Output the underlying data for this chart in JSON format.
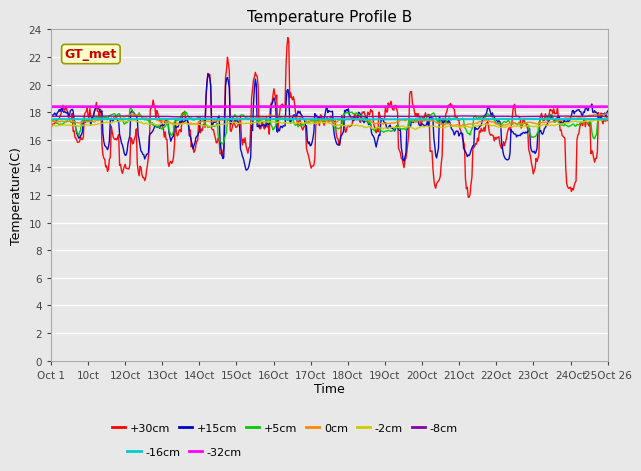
{
  "title": "Temperature Profile B",
  "xlabel": "Time",
  "ylabel": "Temperature(C)",
  "annotation": "GT_met",
  "ylim": [
    0,
    24
  ],
  "yticks": [
    0,
    2,
    4,
    6,
    8,
    10,
    12,
    14,
    16,
    18,
    20,
    22,
    24
  ],
  "xtick_labels": [
    "Oct 1",
    "10ct",
    "12Oct",
    "13Oct",
    "14Oct",
    "15Oct",
    "16Oct",
    "17Oct",
    "18Oct",
    "19Oct",
    "20Oct",
    "21Oct",
    "22Oct",
    "23Oct",
    "24Oct",
    "25Oct 26"
  ],
  "series": [
    {
      "label": "+30cm",
      "color": "#ff0000",
      "lw": 1.0
    },
    {
      "label": "+15cm",
      "color": "#0000cc",
      "lw": 1.0
    },
    {
      "label": "+5cm",
      "color": "#00cc00",
      "lw": 1.0
    },
    {
      "label": "0cm",
      "color": "#ff8800",
      "lw": 1.0
    },
    {
      "label": "-2cm",
      "color": "#cccc00",
      "lw": 1.0
    },
    {
      "label": "-8cm",
      "color": "#8800aa",
      "lw": 1.0
    },
    {
      "label": "-16cm",
      "color": "#00cccc",
      "lw": 1.5
    },
    {
      "label": "-32cm",
      "color": "#ff00ff",
      "lw": 2.0
    }
  ],
  "bg_color": "#e8e8e8",
  "grid_color": "#ffffff",
  "annotation_color": "#cc0000",
  "annotation_bg": "#ffffcc",
  "annotation_edge": "#999900"
}
